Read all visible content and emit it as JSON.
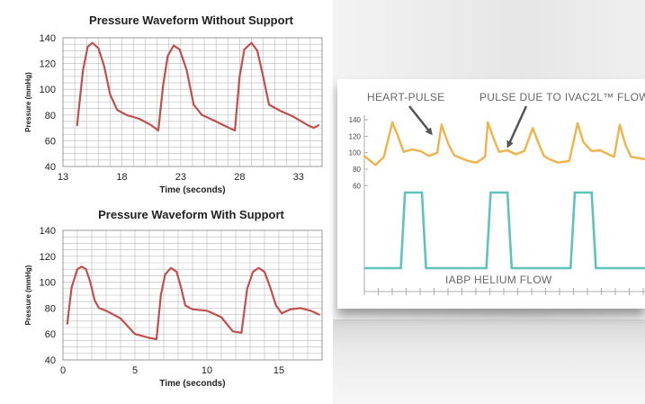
{
  "colors": {
    "trace": "#c0504d",
    "grid": "#b9b9b9",
    "pressure_line": "#f0b24a",
    "flow_line": "#5ec3bd",
    "annotation": "#666666",
    "arrow": "#555555"
  },
  "chart_data": [
    {
      "type": "line",
      "title": "Pressure Waveform Without Support",
      "xlabel": "Time (seconds)",
      "ylabel": "Pressure (mmHg)",
      "xlim": [
        13,
        35
      ],
      "ylim": [
        40,
        140
      ],
      "xticks": [
        13,
        18,
        23,
        28,
        33
      ],
      "yticks": [
        40,
        60,
        80,
        100,
        120,
        140
      ],
      "grid": true,
      "series": [
        {
          "x": [
            14.2,
            14.7,
            15.1,
            15.5,
            16.0,
            16.5,
            17.0,
            17.6,
            18.4,
            19.5,
            20.5,
            21.1,
            21.5,
            21.9,
            22.4,
            22.9,
            23.5,
            24.1,
            24.8,
            26.0,
            27.1,
            27.6,
            28.0,
            28.4,
            29.0,
            29.5,
            30.0,
            30.5,
            31.5,
            32.5,
            33.8,
            34.3,
            34.7
          ],
          "y": [
            72,
            115,
            133,
            136,
            132,
            118,
            96,
            84,
            80,
            77,
            72,
            68,
            103,
            126,
            134,
            131,
            115,
            88,
            80,
            75,
            70,
            68,
            110,
            131,
            136,
            130,
            110,
            88,
            83,
            79,
            72,
            70,
            72
          ]
        }
      ]
    },
    {
      "type": "line",
      "title": "Pressure Waveform With Support",
      "xlabel": "Time (seconds)",
      "ylabel": "Pressure (mmHg)",
      "xlim": [
        0,
        18
      ],
      "ylim": [
        40,
        140
      ],
      "xticks": [
        0,
        5,
        10,
        15
      ],
      "yticks": [
        40,
        60,
        80,
        100,
        120,
        140
      ],
      "grid": true,
      "series": [
        {
          "x": [
            0.3,
            0.6,
            1.0,
            1.3,
            1.6,
            1.9,
            2.2,
            2.5,
            3.0,
            4.0,
            5.0,
            6.0,
            6.5,
            6.8,
            7.1,
            7.5,
            7.9,
            8.2,
            8.5,
            9.0,
            10.0,
            11.0,
            11.8,
            12.4,
            12.8,
            13.2,
            13.6,
            14.0,
            14.4,
            14.8,
            15.2,
            15.8,
            16.5,
            17.2,
            17.8
          ],
          "y": [
            68,
            96,
            110,
            112,
            110,
            100,
            86,
            80,
            78,
            72,
            60,
            57,
            56,
            90,
            106,
            111,
            108,
            96,
            82,
            79,
            78,
            73,
            62,
            61,
            95,
            108,
            111,
            108,
            96,
            82,
            76,
            79,
            80,
            78,
            75
          ]
        }
      ]
    },
    {
      "type": "line",
      "yticks": [
        60,
        80,
        100,
        120,
        140
      ],
      "ylim": [
        45,
        150
      ],
      "xlim": [
        0,
        10
      ],
      "annotations": [
        "HEART-PULSE",
        "PULSE DUE TO IVAC2L™ FLOW",
        "IABP HELIUM FLOW"
      ],
      "series": [
        {
          "x": [
            0,
            0.4,
            0.7,
            1.0,
            1.2,
            1.4,
            1.7,
            2.0,
            2.3,
            2.6,
            2.75,
            3.0,
            3.2,
            3.4,
            3.7,
            4.0,
            4.3,
            4.4,
            4.6,
            4.8,
            5.1,
            5.4,
            5.7,
            6.0,
            6.2,
            6.4,
            6.6,
            6.9,
            7.3,
            7.6,
            7.8,
            8.1,
            8.4,
            8.7,
            8.9,
            9.1,
            9.3,
            9.5,
            10.0
          ],
          "y": [
            96,
            85,
            95,
            137,
            120,
            101,
            104,
            102,
            96,
            100,
            134,
            110,
            97,
            94,
            90,
            88,
            95,
            137,
            118,
            101,
            103,
            98,
            102,
            130,
            112,
            96,
            92,
            88,
            90,
            136,
            113,
            102,
            103,
            98,
            95,
            134,
            110,
            95,
            92
          ]
        },
        {
          "x": [
            0,
            1.3,
            1.45,
            2.05,
            2.2,
            4.35,
            4.5,
            5.1,
            5.25,
            7.35,
            7.5,
            8.1,
            8.25,
            10.0
          ],
          "y": [
            0,
            0,
            1,
            1,
            0,
            0,
            1,
            1,
            0,
            0,
            1,
            1,
            0,
            0
          ]
        }
      ]
    }
  ]
}
